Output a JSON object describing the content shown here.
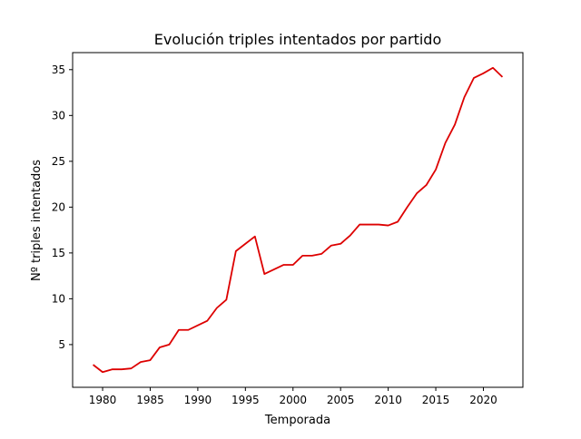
{
  "chart_data": {
    "type": "line",
    "title": "Evolución triples intentados por partido",
    "xlabel": "Temporada",
    "ylabel": "Nº triples intentados",
    "xlim": [
      1976.85,
      2024.15
    ],
    "ylim": [
      0.34,
      36.86
    ],
    "xticks": [
      1980,
      1985,
      1990,
      1995,
      2000,
      2005,
      2010,
      2015,
      2020
    ],
    "yticks": [
      5,
      10,
      15,
      20,
      25,
      30,
      35
    ],
    "grid": false,
    "legend": "none",
    "line_color": "#dd0000",
    "series": [
      {
        "x": [
          1979,
          1980,
          1981,
          1982,
          1983,
          1984,
          1985,
          1986,
          1987,
          1988,
          1989,
          1990,
          1991,
          1992,
          1993,
          1994,
          1995,
          1996,
          1997,
          1998,
          1999,
          2000,
          2001,
          2002,
          2003,
          2004,
          2005,
          2006,
          2007,
          2008,
          2009,
          2010,
          2011,
          2012,
          2013,
          2014,
          2015,
          2016,
          2017,
          2018,
          2019,
          2020,
          2021,
          2022
        ],
        "values": [
          2.8,
          2.0,
          2.3,
          2.3,
          2.4,
          3.1,
          3.3,
          4.7,
          5.0,
          6.6,
          6.6,
          7.1,
          7.6,
          9.0,
          9.9,
          15.2,
          16.0,
          16.8,
          12.7,
          13.2,
          13.7,
          13.7,
          14.7,
          14.7,
          14.9,
          15.8,
          16.0,
          16.9,
          18.1,
          18.1,
          18.1,
          18.0,
          18.4,
          20.0,
          21.5,
          22.4,
          24.1,
          27.0,
          29.0,
          32.0,
          34.1,
          34.6,
          35.2,
          34.2
        ]
      }
    ]
  }
}
